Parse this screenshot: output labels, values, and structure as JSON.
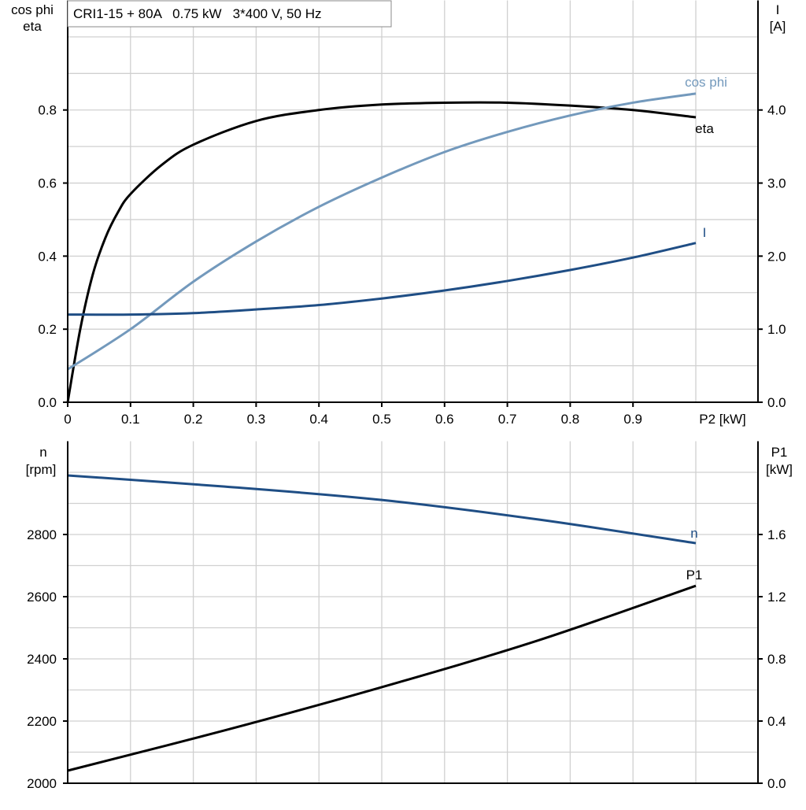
{
  "chart_data": [
    {
      "type": "line",
      "title": "CRI1-15 + 80A   0.75 kW   3*400 V, 50 Hz",
      "xlabel": "P2 [kW]",
      "ylabel_left": [
        "cos phi",
        "eta"
      ],
      "ylabel_right": [
        "I",
        "[A]"
      ],
      "xlim": [
        0,
        1.1
      ],
      "ylim_left": [
        0,
        1.1
      ],
      "ylim_right": [
        0,
        5.5
      ],
      "x_ticks": [
        "0",
        "0.1",
        "0.2",
        "0.3",
        "0.4",
        "0.5",
        "0.6",
        "0.7",
        "0.8",
        "0.9"
      ],
      "y_ticks_left": [
        "0.0",
        "0.2",
        "0.4",
        "0.6",
        "0.8"
      ],
      "y_ticks_right": [
        "0.0",
        "1.0",
        "2.0",
        "3.0",
        "4.0"
      ],
      "grid": true,
      "series": [
        {
          "name": "eta",
          "axis": "left",
          "color": "#000000",
          "x": [
            0,
            0.02,
            0.04,
            0.06,
            0.08,
            0.1,
            0.15,
            0.2,
            0.3,
            0.4,
            0.5,
            0.6,
            0.7,
            0.8,
            0.9,
            1.0
          ],
          "y": [
            0,
            0.2,
            0.35,
            0.45,
            0.52,
            0.57,
            0.65,
            0.705,
            0.77,
            0.8,
            0.815,
            0.82,
            0.82,
            0.812,
            0.8,
            0.78
          ]
        },
        {
          "name": "cos phi",
          "axis": "left",
          "color": "#7399bc",
          "x": [
            0,
            0.1,
            0.2,
            0.3,
            0.4,
            0.5,
            0.6,
            0.7,
            0.8,
            0.9,
            1.0
          ],
          "y": [
            0.09,
            0.2,
            0.33,
            0.44,
            0.535,
            0.615,
            0.685,
            0.74,
            0.785,
            0.82,
            0.845
          ]
        },
        {
          "name": "I",
          "axis": "right",
          "color": "#1f4e85",
          "x": [
            0,
            0.1,
            0.2,
            0.3,
            0.4,
            0.5,
            0.6,
            0.7,
            0.8,
            0.9,
            1.0
          ],
          "y": [
            1.2,
            1.2,
            1.22,
            1.27,
            1.33,
            1.42,
            1.53,
            1.66,
            1.81,
            1.98,
            2.18
          ]
        }
      ]
    },
    {
      "type": "line",
      "ylabel_left": [
        "n",
        "[rpm]"
      ],
      "ylabel_right": [
        "P1",
        "[kW]"
      ],
      "xlim": [
        0,
        1.1
      ],
      "ylim_left": [
        2000,
        3100
      ],
      "ylim_right": [
        0,
        2.2
      ],
      "y_ticks_left": [
        "2000",
        "2200",
        "2400",
        "2600",
        "2800"
      ],
      "y_ticks_right": [
        "0.0",
        "0.4",
        "0.8",
        "1.2",
        "1.6"
      ],
      "grid": true,
      "series": [
        {
          "name": "n",
          "axis": "left",
          "color": "#1f4e85",
          "x": [
            0,
            0.25,
            0.5,
            0.75,
            1.0
          ],
          "y": [
            2990,
            2954,
            2911,
            2848,
            2772
          ]
        },
        {
          "name": "P1",
          "axis": "right",
          "color": "#000000",
          "x": [
            0,
            0.25,
            0.5,
            0.75,
            1.0
          ],
          "y": [
            0.081,
            0.34,
            0.618,
            0.92,
            1.27
          ]
        }
      ]
    }
  ]
}
